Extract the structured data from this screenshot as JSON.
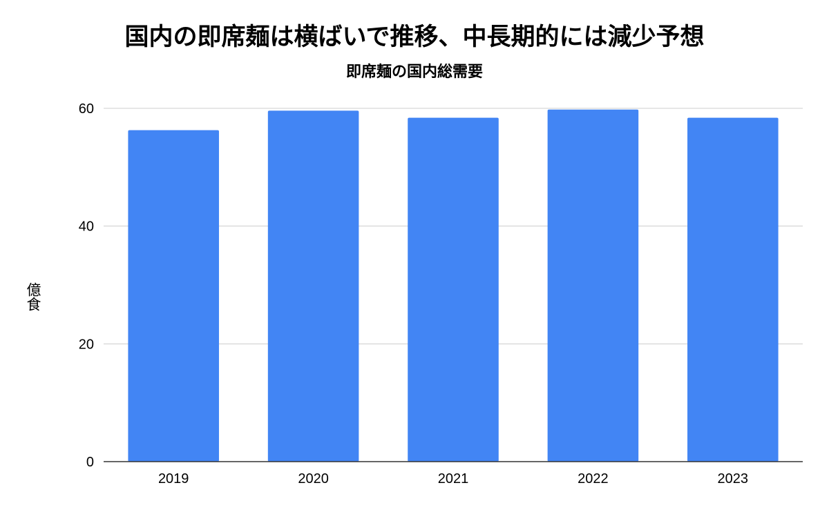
{
  "chart_data": {
    "type": "bar",
    "title": "国内の即席麺は横ばいで推移、中長期的には減少予想",
    "subtitle": "即席麺の国内総需要",
    "xlabel": "",
    "ylabel": "億食",
    "categories": [
      "2019",
      "2020",
      "2021",
      "2022",
      "2023"
    ],
    "values": [
      56.3,
      59.6,
      58.4,
      59.8,
      58.4
    ],
    "ylim": [
      0,
      60
    ],
    "yticks": [
      0,
      20,
      40,
      60
    ],
    "grid": true,
    "legend": "none",
    "colors": {
      "bar": "#4285f4",
      "grid": "#cccccc",
      "axis": "#333333"
    }
  }
}
